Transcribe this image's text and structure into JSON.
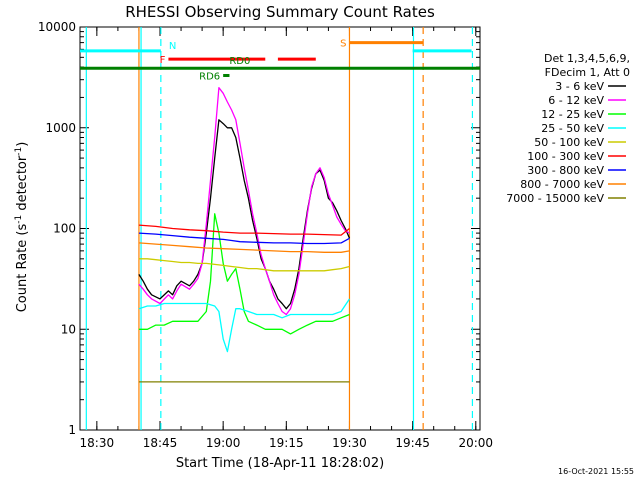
{
  "chart_data": {
    "type": "line",
    "title": "RHESSI Observing Summary Count Rates",
    "xlabel": "Start Time (18-Apr-11 18:28:02)",
    "ylabel_main": "Count Rate (s",
    "ylabel_sup1": "-1",
    "ylabel_mid": " detector",
    "ylabel_sup2": "-1",
    "ylabel_end": ")",
    "y_scale": "log",
    "ylim": [
      1,
      10000
    ],
    "xlim_minutes": [
      -2,
      93
    ],
    "x_ticks": [
      {
        "label": "18:30",
        "m": 2
      },
      {
        "label": "18:45",
        "m": 17
      },
      {
        "label": "19:00",
        "m": 32
      },
      {
        "label": "19:15",
        "m": 47
      },
      {
        "label": "19:30",
        "m": 62
      },
      {
        "label": "19:45",
        "m": 77
      },
      {
        "label": "20:00",
        "m": 92
      }
    ],
    "y_ticks": [
      {
        "label": "1",
        "v": 1
      },
      {
        "label": "10",
        "v": 10
      },
      {
        "label": "100",
        "v": 100
      },
      {
        "label": "1000",
        "v": 1000
      },
      {
        "label": "10000",
        "v": 10000
      }
    ],
    "legend_header": [
      "Det 1,3,4,5,6,9,",
      "FDecim 1, Att 0"
    ],
    "legend_position": "right",
    "series": [
      {
        "name": "3 - 6 keV",
        "color": "#000000",
        "x": [
          12,
          13,
          14,
          15,
          17,
          19,
          20,
          21,
          22,
          24,
          25,
          26,
          27,
          28,
          29,
          30,
          31,
          32,
          33,
          34,
          35,
          36,
          37,
          38,
          39,
          40,
          41,
          42,
          43,
          44,
          45,
          46,
          47,
          48,
          49,
          50,
          51,
          52,
          53,
          54,
          55,
          56,
          57,
          58,
          59,
          60,
          61,
          62
        ],
        "y": [
          35,
          30,
          25,
          22,
          20,
          24,
          22,
          27,
          30,
          27,
          30,
          35,
          45,
          90,
          200,
          500,
          1200,
          1100,
          1000,
          1000,
          800,
          500,
          300,
          200,
          120,
          80,
          50,
          40,
          30,
          25,
          20,
          18,
          16,
          18,
          25,
          40,
          80,
          150,
          250,
          350,
          380,
          300,
          200,
          180,
          150,
          120,
          100,
          80
        ]
      },
      {
        "name": "6 - 12 keV",
        "color": "#ff00ff",
        "x": [
          12,
          13,
          14,
          15,
          17,
          19,
          20,
          21,
          22,
          24,
          25,
          26,
          27,
          28,
          29,
          30,
          31,
          32,
          33,
          34,
          35,
          36,
          37,
          38,
          39,
          40,
          41,
          42,
          43,
          44,
          45,
          46,
          47,
          48,
          49,
          50,
          51,
          52,
          53,
          54,
          55,
          56,
          57,
          58,
          59,
          60,
          61,
          62
        ],
        "y": [
          28,
          25,
          22,
          20,
          18,
          22,
          20,
          24,
          28,
          25,
          28,
          32,
          45,
          110,
          300,
          800,
          2500,
          2200,
          1800,
          1500,
          1200,
          700,
          400,
          240,
          140,
          90,
          55,
          40,
          30,
          22,
          18,
          15,
          14,
          16,
          22,
          35,
          70,
          140,
          260,
          350,
          400,
          320,
          220,
          170,
          130,
          110,
          95,
          90
        ]
      },
      {
        "name": "12 - 25 keV",
        "color": "#00ff00",
        "x": [
          12,
          14,
          16,
          18,
          20,
          22,
          24,
          26,
          28,
          29,
          30,
          31,
          32,
          33,
          34,
          35,
          36,
          37,
          38,
          40,
          42,
          44,
          46,
          48,
          50,
          52,
          54,
          56,
          58,
          60,
          62
        ],
        "y": [
          10,
          10,
          11,
          11,
          12,
          12,
          12,
          12,
          15,
          30,
          140,
          90,
          45,
          30,
          35,
          40,
          25,
          15,
          12,
          11,
          10,
          10,
          10,
          9,
          10,
          11,
          12,
          12,
          12,
          13,
          14
        ]
      },
      {
        "name": "25 - 50 keV",
        "color": "#00ffff",
        "x": [
          12,
          14,
          16,
          18,
          20,
          22,
          24,
          26,
          28,
          30,
          31,
          32,
          33,
          34,
          35,
          36,
          38,
          40,
          42,
          44,
          46,
          48,
          50,
          52,
          54,
          56,
          58,
          60,
          62
        ],
        "y": [
          16,
          17,
          17,
          18,
          18,
          18,
          18,
          18,
          18,
          17,
          15,
          8,
          6,
          10,
          16,
          16,
          15,
          14,
          14,
          14,
          13,
          14,
          14,
          14,
          14,
          14,
          14,
          15,
          20
        ]
      },
      {
        "name": "50 - 100 keV",
        "color": "#cccc00",
        "x": [
          12,
          14,
          16,
          18,
          20,
          22,
          24,
          26,
          28,
          30,
          32,
          34,
          36,
          38,
          40,
          42,
          44,
          46,
          48,
          50,
          52,
          54,
          56,
          58,
          60,
          62
        ],
        "y": [
          50,
          50,
          49,
          48,
          47,
          46,
          46,
          45,
          45,
          44,
          43,
          42,
          41,
          40,
          40,
          39,
          38,
          38,
          38,
          38,
          38,
          38,
          38,
          39,
          40,
          42
        ]
      },
      {
        "name": "100 - 300 keV",
        "color": "#ff0000",
        "x": [
          12,
          16,
          20,
          24,
          28,
          32,
          36,
          40,
          44,
          48,
          52,
          56,
          60,
          62
        ],
        "y": [
          108,
          105,
          100,
          97,
          95,
          92,
          90,
          90,
          89,
          88,
          88,
          87,
          86,
          100
        ]
      },
      {
        "name": "300 - 800 keV",
        "color": "#0000ff",
        "x": [
          12,
          16,
          20,
          24,
          28,
          32,
          34,
          36,
          40,
          44,
          48,
          52,
          56,
          60,
          62
        ],
        "y": [
          90,
          88,
          85,
          82,
          80,
          78,
          76,
          74,
          73,
          72,
          72,
          71,
          71,
          72,
          80
        ]
      },
      {
        "name": "800 - 7000 keV",
        "color": "#ff8000",
        "x": [
          12,
          16,
          20,
          24,
          28,
          32,
          36,
          40,
          44,
          48,
          52,
          56,
          60,
          62
        ],
        "y": [
          72,
          70,
          68,
          66,
          64,
          63,
          62,
          61,
          60,
          59,
          59,
          58,
          58,
          60
        ]
      },
      {
        "name": "7000 - 15000 keV",
        "color": "#808000",
        "x": [
          12,
          16,
          20,
          24,
          28,
          32,
          36,
          40,
          44,
          48,
          52,
          56,
          60,
          62
        ],
        "y": [
          3,
          3,
          3,
          3,
          3,
          3,
          3,
          3,
          3,
          3,
          3,
          3,
          3,
          3
        ]
      }
    ],
    "state_markers": [
      {
        "label": "N",
        "color": "#00ffff",
        "y": 5800,
        "segments": [
          [
            -2,
            17.2
          ],
          [
            77,
            91
          ]
        ]
      },
      {
        "label": "S",
        "color": "#ff8000",
        "y": 7000,
        "segments": [
          [
            62,
            79.5
          ]
        ]
      },
      {
        "label": "F",
        "color": "#ff0000",
        "y": 4800,
        "segments": [
          [
            19,
            42
          ],
          [
            45,
            54
          ]
        ]
      },
      {
        "label": "RD0",
        "color": "#008000",
        "y": 3900,
        "segments": [
          [
            -2,
            93
          ]
        ]
      },
      {
        "label": "RD6",
        "color": "#008000",
        "y": 3300,
        "segments": [
          [
            32,
            33.5
          ]
        ]
      }
    ],
    "vlines": [
      {
        "m": -0.5,
        "color": "#00ffff",
        "style": "solid"
      },
      {
        "m": 12.5,
        "color": "#00ffff",
        "style": "solid"
      },
      {
        "m": 17.2,
        "color": "#00ffff",
        "style": "dashed"
      },
      {
        "m": 62,
        "color": "#ff8000",
        "style": "solid"
      },
      {
        "m": 77.2,
        "color": "#00ffff",
        "style": "solid"
      },
      {
        "m": 79.5,
        "color": "#ff8000",
        "style": "dashed"
      },
      {
        "m": 91.2,
        "color": "#00ffff",
        "style": "dashed"
      },
      {
        "m": 12,
        "color": "#ff8000",
        "style": "solid"
      }
    ],
    "footer_text": "16-Oct-2021 15:55"
  }
}
